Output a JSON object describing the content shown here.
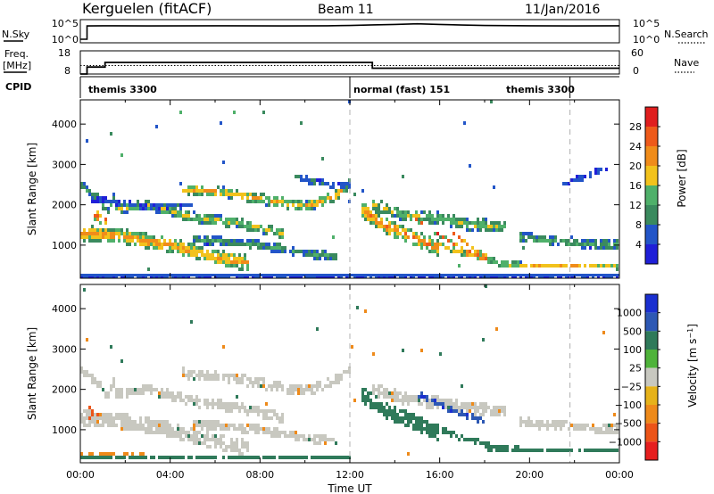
{
  "header": {
    "station": "Kerguelen (fitACF)",
    "beam": "Beam 11",
    "date": "11/Jan/2016"
  },
  "colors": {
    "power_scale": [
      "#1f1fd8",
      "#2255c8",
      "#3a8a5e",
      "#4fb06a",
      "#f2c21c",
      "#f08c1a",
      "#ee5a1a",
      "#e01e1e"
    ],
    "velocity_scale": [
      "#1a2fd0",
      "#2d58b4",
      "#2f7a5a",
      "#4fb33a",
      "#c8c8c0",
      "#e6b21a",
      "#ee8a1a",
      "#ec5418",
      "#e61e1e"
    ],
    "ground_scatter": "#c8c8c0"
  },
  "chart_data": [
    {
      "type": "line",
      "name": "noise-panel",
      "left_label": "N.Sky",
      "right_label": "N.Search",
      "left_ticks": [
        "10^5",
        "10^0"
      ],
      "right_ticks": [
        "10^5",
        "10^0"
      ],
      "series": [
        {
          "name": "N.Sky",
          "points": [
            [
              0,
              0.85
            ],
            [
              0.3,
              0.85
            ],
            [
              0.3,
              4.0
            ],
            [
              1,
              4.05
            ],
            [
              3,
              4.0
            ],
            [
              6,
              4.05
            ],
            [
              9,
              4.0
            ],
            [
              11,
              4.05
            ],
            [
              12,
              4.1
            ],
            [
              13,
              4.25
            ],
            [
              14,
              4.35
            ],
            [
              15,
              4.5
            ],
            [
              16,
              4.35
            ],
            [
              17,
              4.2
            ],
            [
              18,
              4.1
            ],
            [
              20,
              4.05
            ],
            [
              22,
              4.0
            ],
            [
              24,
              4.05
            ]
          ]
        },
        {
          "name": "N.Search",
          "points": [
            [
              0,
              0.0
            ],
            [
              24,
              0.0
            ]
          ]
        }
      ],
      "ylim": [
        0,
        5.5
      ]
    },
    {
      "type": "line",
      "name": "freq-panel",
      "left_label": "Freq. [MHz]",
      "right_label": "Nave",
      "left_ticks": [
        "18",
        "8"
      ],
      "right_ticks": [
        "60",
        "0"
      ],
      "series": [
        {
          "name": "Freq",
          "axis": "left",
          "points": [
            [
              0,
              8
            ],
            [
              0.3,
              8
            ],
            [
              0.3,
              11
            ],
            [
              1.1,
              11
            ],
            [
              1.1,
              13
            ],
            [
              13,
              13
            ],
            [
              13,
              10.5
            ],
            [
              24,
              10.5
            ]
          ]
        },
        {
          "name": "Nave",
          "axis": "right",
          "points": [
            [
              0,
              22
            ],
            [
              24,
              22
            ]
          ]
        }
      ],
      "left_ylim": [
        8,
        18
      ],
      "right_ylim": [
        0,
        60
      ]
    },
    {
      "type": "table",
      "name": "cpid-panel",
      "label": "CPID",
      "modes": [
        {
          "text": "themis 3300",
          "start": 0.2
        },
        {
          "text": "normal (fast) 151",
          "start": 12.0
        },
        {
          "text": "themis 3300",
          "start": 18.8
        }
      ],
      "dividers": [
        12.0,
        21.8
      ]
    },
    {
      "type": "heatmap",
      "name": "power-panel",
      "ylabel": "Slant Range [km]",
      "yticks": [
        "1000",
        "2000",
        "3000",
        "4000"
      ],
      "ylim": [
        180,
        4600
      ],
      "colorbar_label": "Power [dB]",
      "colorbar_ticks": [
        "4",
        "8",
        "12",
        "16",
        "20",
        "24",
        "28"
      ],
      "colorbar_range": [
        0,
        32
      ],
      "bands": [
        {
          "points": [
            [
              0,
              2500
            ],
            [
              0.8,
              2150
            ],
            [
              1.2,
              1800
            ],
            [
              1.6,
              2300
            ]
          ],
          "width": 220,
          "value": 12
        },
        {
          "points": [
            [
              0.6,
              1750
            ],
            [
              1.2,
              1600
            ]
          ],
          "width": 260,
          "value": 26
        },
        {
          "points": [
            [
              0,
              1300
            ],
            [
              2,
              1200
            ],
            [
              4,
              1000
            ],
            [
              6,
              700
            ],
            [
              7.5,
              550
            ]
          ],
          "width": 380,
          "value": 22
        },
        {
          "points": [
            [
              1.5,
              1900
            ],
            [
              3,
              2000
            ],
            [
              5,
              1700
            ],
            [
              7,
              1550
            ],
            [
              9,
              1300
            ]
          ],
          "width": 260,
          "value": 17
        },
        {
          "points": [
            [
              4.5,
              2400
            ],
            [
              6.5,
              2300
            ],
            [
              8,
              2150
            ],
            [
              10,
              1950
            ],
            [
              11.3,
              2200
            ],
            [
              12,
              2500
            ]
          ],
          "width": 260,
          "value": 20
        },
        {
          "points": [
            [
              5,
              1150
            ],
            [
              8,
              1000
            ],
            [
              10,
              800
            ],
            [
              11.5,
              700
            ]
          ],
          "width": 220,
          "value": 12
        },
        {
          "points": [
            [
              0.5,
              2150
            ],
            [
              3,
              1950
            ],
            [
              5,
              2000
            ]
          ],
          "width": 150,
          "value": 6
        },
        {
          "points": [
            [
              9.5,
              2700
            ],
            [
              11,
              2500
            ],
            [
              12,
              2450
            ]
          ],
          "width": 180,
          "value": 8
        },
        {
          "points": [
            [
              12.5,
              1900
            ],
            [
              13.5,
              1500
            ],
            [
              14.8,
              1200
            ],
            [
              16,
              900
            ]
          ],
          "width": 380,
          "value": 24
        },
        {
          "points": [
            [
              13,
              2000
            ],
            [
              14.5,
              1750
            ],
            [
              16,
              1650
            ],
            [
              17.5,
              1500
            ],
            [
              19,
              1450
            ]
          ],
          "width": 320,
          "value": 16
        },
        {
          "points": [
            [
              14.8,
              1700
            ],
            [
              16,
              1250
            ],
            [
              17,
              900
            ],
            [
              18.2,
              650
            ]
          ],
          "width": 90,
          "value": 28
        },
        {
          "points": [
            [
              16.5,
              1350
            ],
            [
              17.5,
              900
            ],
            [
              18.5,
              600
            ]
          ],
          "width": 90,
          "value": 27
        },
        {
          "points": [
            [
              15.5,
              1100
            ],
            [
              17,
              800
            ],
            [
              19,
              500
            ]
          ],
          "width": 130,
          "value": 22
        },
        {
          "points": [
            [
              18,
              550
            ],
            [
              20,
              500
            ],
            [
              22,
              480
            ],
            [
              24,
              470
            ]
          ],
          "width": 140,
          "value": 20
        },
        {
          "points": [
            [
              19.5,
              1200
            ],
            [
              21,
              1100
            ],
            [
              22.5,
              1050
            ],
            [
              24,
              1000
            ]
          ],
          "width": 260,
          "value": 13
        },
        {
          "points": [
            [
              21.5,
              2500
            ],
            [
              22.5,
              2700
            ],
            [
              23.5,
              2950
            ]
          ],
          "width": 160,
          "value": 6
        },
        {
          "points": [
            [
              0,
              270
            ],
            [
              12,
              270
            ]
          ],
          "width": 60,
          "value": 14
        },
        {
          "points": [
            [
              0,
              230
            ],
            [
              24,
              230
            ]
          ],
          "width": 40,
          "value": 5
        }
      ]
    },
    {
      "type": "heatmap",
      "name": "velocity-panel",
      "ylabel": "Slant Range [km]",
      "yticks": [
        "1000",
        "2000",
        "3000",
        "4000"
      ],
      "ylim": [
        180,
        4600
      ],
      "xlabel": "Time UT",
      "xticks": [
        "00:00",
        "04:00",
        "08:00",
        "12:00",
        "16:00",
        "20:00",
        "00:00"
      ],
      "xlim": [
        0,
        24
      ],
      "colorbar_label": "Velocity [m s^-1]",
      "colorbar_ticks": [
        "1000",
        "500",
        "100",
        "25",
        "-25",
        "-100",
        "-500",
        "-1000"
      ],
      "bands": [
        {
          "points": [
            [
              0,
              2500
            ],
            [
              0.8,
              2150
            ],
            [
              1.2,
              1800
            ],
            [
              1.6,
              2300
            ]
          ],
          "width": 220,
          "value": 0
        },
        {
          "points": [
            [
              0.4,
              1400
            ],
            [
              1,
              1300
            ]
          ],
          "width": 320,
          "value": -500
        },
        {
          "points": [
            [
              0,
              1300
            ],
            [
              2,
              1200
            ],
            [
              4,
              1000
            ],
            [
              6,
              700
            ],
            [
              7.5,
              550
            ]
          ],
          "width": 380,
          "value": 0
        },
        {
          "points": [
            [
              1.5,
              1900
            ],
            [
              3,
              2000
            ],
            [
              5,
              1700
            ],
            [
              7,
              1550
            ],
            [
              9,
              1300
            ]
          ],
          "width": 260,
          "value": 0
        },
        {
          "points": [
            [
              4.5,
              2400
            ],
            [
              6.5,
              2300
            ],
            [
              8,
              2150
            ],
            [
              10,
              1950
            ],
            [
              11.3,
              2200
            ],
            [
              12,
              2500
            ]
          ],
          "width": 260,
          "value": 0
        },
        {
          "points": [
            [
              5,
              1150
            ],
            [
              8,
              1000
            ],
            [
              10,
              800
            ],
            [
              11.5,
              700
            ]
          ],
          "width": 220,
          "value": 0
        },
        {
          "points": [
            [
              12.5,
              1900
            ],
            [
              13.5,
              1500
            ],
            [
              14.8,
              1200
            ],
            [
              16,
              900
            ]
          ],
          "width": 380,
          "value": 150
        },
        {
          "points": [
            [
              13,
              2000
            ],
            [
              14.5,
              1750
            ],
            [
              16,
              1650
            ],
            [
              17.5,
              1500
            ],
            [
              19,
              1450
            ]
          ],
          "width": 320,
          "value": 0
        },
        {
          "points": [
            [
              15,
              1900
            ],
            [
              16.5,
              1500
            ],
            [
              18,
              1200
            ]
          ],
          "width": 140,
          "value": 400
        },
        {
          "points": [
            [
              15.5,
              1100
            ],
            [
              17,
              800
            ],
            [
              19,
              500
            ]
          ],
          "width": 150,
          "value": 150
        },
        {
          "points": [
            [
              18,
              550
            ],
            [
              20,
              500
            ],
            [
              22,
              480
            ],
            [
              24,
              470
            ]
          ],
          "width": 140,
          "value": 150
        },
        {
          "points": [
            [
              19.5,
              1200
            ],
            [
              21,
              1100
            ],
            [
              22.5,
              1050
            ],
            [
              24,
              1000
            ]
          ],
          "width": 240,
          "value": 0
        },
        {
          "points": [
            [
              0,
              300
            ],
            [
              12,
              300
            ]
          ],
          "width": 120,
          "value": 150
        },
        {
          "points": [
            [
              0,
              380
            ],
            [
              3,
              360
            ]
          ],
          "width": 80,
          "value": -150
        }
      ]
    }
  ]
}
